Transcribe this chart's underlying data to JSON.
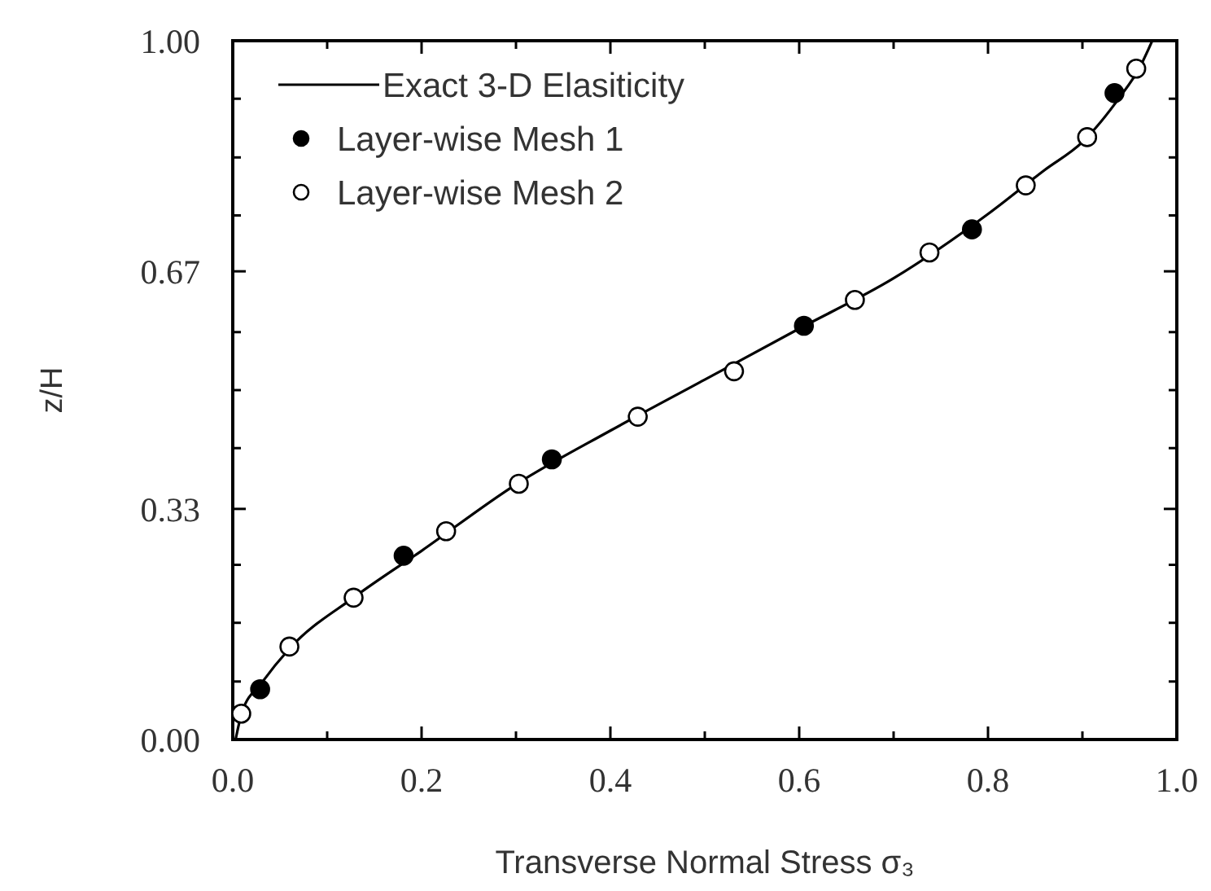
{
  "chart_data": {
    "type": "line",
    "xlabel": "Transverse Normal Stress σ₃",
    "ylabel": "z/H",
    "xlim": [
      0,
      1
    ],
    "ylim": [
      0,
      1
    ],
    "xticks": [
      {
        "value": 0,
        "label": "0.0"
      },
      {
        "value": 0.1,
        "label": null
      },
      0.2,
      {
        "value": 0.3,
        "label": null
      },
      0.4,
      {
        "value": 0.5,
        "label": null
      },
      0.6,
      {
        "value": 0.7,
        "label": null
      },
      0.8,
      {
        "value": 0.9,
        "label": null
      },
      {
        "value": 1,
        "label": "1.0"
      }
    ],
    "yticks": [
      {
        "value": 0,
        "label": "0.00"
      },
      {
        "value": 0.083,
        "label": null
      },
      {
        "value": 0.167,
        "label": null
      },
      {
        "value": 0.25,
        "label": null
      },
      0.33,
      {
        "value": 0.417,
        "label": null
      },
      {
        "value": 0.5,
        "label": null
      },
      {
        "value": 0.583,
        "label": null
      },
      0.67,
      {
        "value": 0.75,
        "label": null
      },
      {
        "value": 0.833,
        "label": null
      },
      {
        "value": 0.917,
        "label": null
      },
      {
        "value": 1,
        "label": "1.00"
      }
    ],
    "grid": false,
    "legend": "top left",
    "series": [
      {
        "name": "Exact 3-D Elasiticity",
        "color": "#000000",
        "marker": "none",
        "line_style": "solid",
        "x": [
          0.003,
          0.01,
          0.03,
          0.06,
          0.13,
          0.2,
          0.3,
          0.4,
          0.5,
          0.6,
          0.7,
          0.8,
          0.86,
          0.9,
          0.94,
          0.96,
          0.974
        ],
        "values": [
          0,
          0.04,
          0.08,
          0.13,
          0.205,
          0.27,
          0.365,
          0.442,
          0.515,
          0.588,
          0.66,
          0.752,
          0.815,
          0.855,
          0.92,
          0.96,
          1
        ]
      },
      {
        "name": "Layer-wise Mesh 1",
        "type": "scatter",
        "color": "#000000",
        "marker": "circle",
        "x": [
          0.029,
          0.181,
          0.338,
          0.605,
          0.783,
          0.934
        ],
        "values": [
          0.072,
          0.263,
          0.401,
          0.592,
          0.73,
          0.925
        ]
      },
      {
        "name": "Layer-wise Mesh 2",
        "type": "scatter",
        "color": "#ffffff",
        "marker": "circle",
        "x": [
          0.009,
          0.06,
          0.128,
          0.226,
          0.303,
          0.429,
          0.531,
          0.659,
          0.738,
          0.84,
          0.905,
          0.957
        ],
        "values": [
          0.037,
          0.133,
          0.203,
          0.298,
          0.366,
          0.462,
          0.527,
          0.629,
          0.697,
          0.793,
          0.862,
          0.96
        ]
      }
    ]
  }
}
